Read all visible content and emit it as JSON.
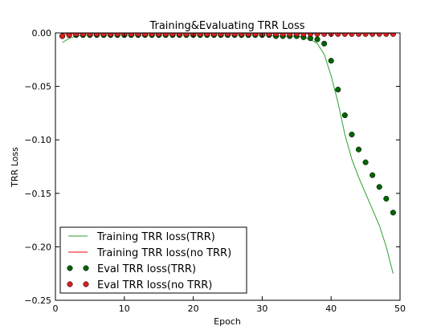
{
  "chart_data": {
    "type": "line",
    "title": "Training&Evaluating TRR Loss",
    "xlabel": "Epoch",
    "ylabel": "TRR Loss",
    "xlim": [
      0,
      50
    ],
    "ylim": [
      -0.25,
      0.0
    ],
    "xticks": [
      0,
      10,
      20,
      30,
      40,
      50
    ],
    "xtick_labels": [
      "0",
      "10",
      "20",
      "30",
      "40",
      "50"
    ],
    "yticks": [
      0.0,
      -0.05,
      -0.1,
      -0.15,
      -0.2,
      -0.25
    ],
    "ytick_labels": [
      "0.00",
      "−0.05",
      "−0.10",
      "−0.15",
      "−0.20",
      "−0.25"
    ],
    "grid": false,
    "legend_position": "bottom-left",
    "series": [
      {
        "name": "Training TRR loss(TRR)",
        "style": "line",
        "color": "#2ca02c",
        "x": [
          1,
          2,
          3,
          4,
          5,
          6,
          7,
          8,
          9,
          10,
          11,
          12,
          13,
          14,
          15,
          16,
          17,
          18,
          19,
          20,
          21,
          22,
          23,
          24,
          25,
          26,
          27,
          28,
          29,
          30,
          31,
          32,
          33,
          34,
          35,
          36,
          37,
          38,
          39,
          40,
          41,
          42,
          43,
          44,
          45,
          46,
          47,
          48,
          49
        ],
        "y": [
          -0.009,
          -0.005,
          -0.003,
          -0.002,
          -0.002,
          -0.002,
          -0.002,
          -0.002,
          -0.002,
          -0.002,
          -0.002,
          -0.002,
          -0.002,
          -0.002,
          -0.002,
          -0.002,
          -0.002,
          -0.002,
          -0.002,
          -0.002,
          -0.002,
          -0.002,
          -0.002,
          -0.002,
          -0.002,
          -0.002,
          -0.002,
          -0.002,
          -0.002,
          -0.002,
          -0.002,
          -0.003,
          -0.003,
          -0.003,
          -0.003,
          -0.004,
          -0.006,
          -0.01,
          -0.02,
          -0.04,
          -0.065,
          -0.095,
          -0.118,
          -0.135,
          -0.15,
          -0.165,
          -0.18,
          -0.2,
          -0.225
        ]
      },
      {
        "name": "Training TRR loss(no TRR)",
        "style": "line",
        "color": "#ff0000",
        "x": [
          1,
          2,
          3,
          4,
          5,
          6,
          7,
          8,
          9,
          10,
          11,
          12,
          13,
          14,
          15,
          16,
          17,
          18,
          19,
          20,
          21,
          22,
          23,
          24,
          25,
          26,
          27,
          28,
          29,
          30,
          31,
          32,
          33,
          34,
          35,
          36,
          37,
          38,
          39,
          40,
          41,
          42,
          43,
          44,
          45,
          46,
          47,
          48,
          49
        ],
        "y": [
          -0.001,
          -0.0007,
          -0.0006,
          -0.0005,
          -0.0005,
          -0.0005,
          -0.0005,
          -0.0005,
          -0.0005,
          -0.0005,
          -0.0005,
          -0.0005,
          -0.0005,
          -0.0005,
          -0.0005,
          -0.0005,
          -0.0005,
          -0.0005,
          -0.0005,
          -0.0005,
          -0.0005,
          -0.0005,
          -0.0005,
          -0.0005,
          -0.0005,
          -0.0005,
          -0.0005,
          -0.0005,
          -0.0005,
          -0.0005,
          -0.0005,
          -0.0005,
          -0.0005,
          -0.0005,
          -0.0005,
          -0.0005,
          -0.0005,
          -0.0005,
          -0.0005,
          -0.0005,
          -0.0005,
          -0.0005,
          -0.0005,
          -0.0005,
          -0.0005,
          -0.0005,
          -0.0005,
          -0.0005,
          -0.0005
        ]
      },
      {
        "name": "Eval TRR loss(TRR)",
        "style": "points",
        "color": "#006400",
        "x": [
          1,
          2,
          3,
          4,
          5,
          6,
          7,
          8,
          9,
          10,
          11,
          12,
          13,
          14,
          15,
          16,
          17,
          18,
          19,
          20,
          21,
          22,
          23,
          24,
          25,
          26,
          27,
          28,
          29,
          30,
          31,
          32,
          33,
          34,
          35,
          36,
          37,
          38,
          39,
          40,
          41,
          42,
          43,
          44,
          45,
          46,
          47,
          48,
          49
        ],
        "y": [
          -0.003,
          -0.002,
          -0.002,
          -0.002,
          -0.002,
          -0.002,
          -0.002,
          -0.002,
          -0.002,
          -0.002,
          -0.002,
          -0.002,
          -0.002,
          -0.002,
          -0.002,
          -0.002,
          -0.002,
          -0.002,
          -0.002,
          -0.002,
          -0.002,
          -0.002,
          -0.002,
          -0.002,
          -0.002,
          -0.002,
          -0.002,
          -0.002,
          -0.002,
          -0.002,
          -0.002,
          -0.003,
          -0.003,
          -0.003,
          -0.003,
          -0.004,
          -0.005,
          -0.006,
          -0.01,
          -0.026,
          -0.053,
          -0.077,
          -0.095,
          -0.109,
          -0.121,
          -0.133,
          -0.144,
          -0.155,
          -0.168
        ]
      },
      {
        "name": "Eval TRR loss(no TRR)",
        "style": "points",
        "color": "#d62020",
        "x": [
          1,
          2,
          3,
          4,
          5,
          6,
          7,
          8,
          9,
          10,
          11,
          12,
          13,
          14,
          15,
          16,
          17,
          18,
          19,
          20,
          21,
          22,
          23,
          24,
          25,
          26,
          27,
          28,
          29,
          30,
          31,
          32,
          33,
          34,
          35,
          36,
          37,
          38,
          39,
          40,
          41,
          42,
          43,
          44,
          45,
          46,
          47,
          48,
          49
        ],
        "y": [
          -0.003,
          -0.002,
          -0.001,
          -0.001,
          -0.001,
          -0.001,
          -0.001,
          -0.001,
          -0.001,
          -0.001,
          -0.001,
          -0.001,
          -0.001,
          -0.001,
          -0.001,
          -0.001,
          -0.001,
          -0.001,
          -0.001,
          -0.001,
          -0.001,
          -0.001,
          -0.001,
          -0.001,
          -0.001,
          -0.001,
          -0.001,
          -0.001,
          -0.001,
          -0.001,
          -0.001,
          -0.001,
          -0.001,
          -0.001,
          -0.001,
          -0.001,
          -0.001,
          -0.001,
          -0.001,
          -0.001,
          -0.001,
          -0.001,
          -0.001,
          -0.001,
          -0.001,
          -0.001,
          -0.001,
          -0.001,
          -0.001
        ]
      }
    ]
  }
}
